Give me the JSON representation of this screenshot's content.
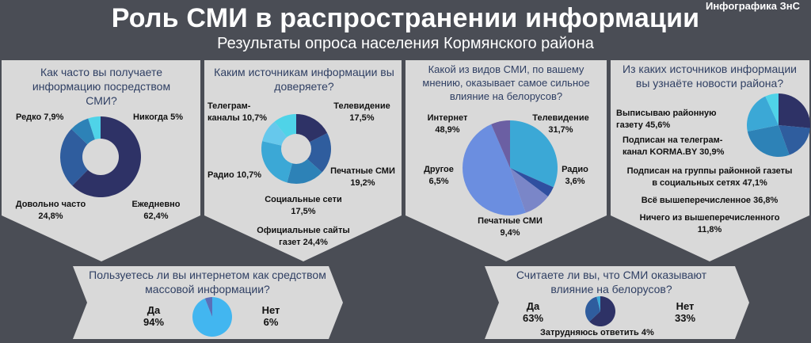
{
  "header": {
    "title": "Роль СМИ в распространении информации",
    "subtitle": "Результаты опроса населения Кормянского района",
    "brand": "Инфографика ЗнС"
  },
  "colors": {
    "navy": "#2e3266",
    "blue": "#2f5d9e",
    "steel": "#2d82b7",
    "sky": "#3ba8d6",
    "cyan": "#4fd3e8",
    "light": "#66c8ec",
    "purple": "#6b5fa3",
    "darkpurple": "#3d1f3a",
    "pale": "#d9d9d9"
  },
  "chart_data": [
    {
      "type": "pie",
      "title": "Как часто вы получаете информацию посредством СМИ?",
      "categories": [
        "Ежедневно",
        "Довольно часто",
        "Редко",
        "Никогда"
      ],
      "labels": [
        "Ежедневно 62,4%",
        "Довольно часто 24,8%",
        "Редко 7,9%",
        "Никогда 5%"
      ],
      "values": [
        62.4,
        24.8,
        7.9,
        5.0
      ]
    },
    {
      "type": "pie",
      "title": "Каким источникам информации вы доверяете?",
      "categories": [
        "Телевидение",
        "Печатные СМИ",
        "Социальные сети",
        "Официальные сайты газет",
        "Радио",
        "Телеграм-каналы"
      ],
      "labels": [
        "Телевидение 17,5%",
        "Печатные СМИ 19,2%",
        "Социальные сети 17,5%",
        "Официальные сайты газет 24,4%",
        "Радио 10,7%",
        "Телеграм-каналы 10,7%"
      ],
      "values": [
        17.5,
        19.2,
        17.5,
        24.4,
        10.7,
        10.7
      ]
    },
    {
      "type": "pie",
      "title": "Какой из видов СМИ, по вашему мнению, оказывает самое сильное влияние на белорусов?",
      "categories": [
        "Телевидение",
        "Радио",
        "Печатные СМИ",
        "Интернет",
        "Другое"
      ],
      "labels": [
        "Телевидение 31,7%",
        "Радио 3,6%",
        "Печатные СМИ 9,4%",
        "Интернет 48,9%",
        "Другое 6,5%"
      ],
      "values": [
        31.7,
        3.6,
        9.4,
        48.9,
        6.5
      ]
    },
    {
      "type": "pie",
      "title": "Из каких источников информации вы узнаёте новости района?",
      "categories": [
        "Выписываю районную газету",
        "Подписан на телеграм-канал KORMA.BY",
        "Подписан на группы районной газеты в социальных сетях",
        "Всё вышеперечисленное",
        "Ничего из вышеперечисленного"
      ],
      "labels": [
        "Выписываю районную газету 45,6%",
        "Подписан на телеграм-канал KORMA.BY 30,9%",
        "Подписан на группы районной газеты в социальных сетях 47,1%",
        "Всё вышеперечисленное 36,8%",
        "Ничего из вышеперечисленного 11,8%"
      ],
      "values": [
        45.6,
        30.9,
        47.1,
        36.8,
        11.8
      ]
    },
    {
      "type": "pie",
      "title": "Пользуетесь ли вы интернетом как средством массовой информации?",
      "categories": [
        "Да",
        "Нет"
      ],
      "values": [
        94,
        6
      ]
    },
    {
      "type": "pie",
      "title": "Считаете ли вы, что СМИ оказывают влияние на белорусов?",
      "categories": [
        "Да",
        "Нет",
        "Затрудняюсь ответить"
      ],
      "values": [
        63,
        33,
        4
      ]
    }
  ],
  "panels": {
    "p1": {
      "question": "Как часто вы получаете информацию посредством СМИ?",
      "l1": "Редко 7,9%",
      "l2": "Никогда 5%",
      "l3a": "Довольно часто",
      "l3b": "24,8%",
      "l4a": "Ежедневно",
      "l4b": "62,4%"
    },
    "p2": {
      "question": "Каким источникам информации вы доверяете?",
      "tga": "Телеграм-",
      "tgb": "каналы 10,7%",
      "tva": "Телевидение",
      "tvb": "17,5%",
      "radio": "Радио 10,7%",
      "pra": "Печатные СМИ",
      "prb": "19,2%",
      "soa": "Социальные сети",
      "sob": "17,5%",
      "ofa": "Официальные сайты",
      "ofb": "газет 24,4%"
    },
    "p3": {
      "question": "Какой из видов СМИ, по вашему мнению, оказывает самое сильное влияние на белорусов?",
      "ina": "Интернет",
      "inb": "48,9%",
      "tva": "Телевидение",
      "tvb": "31,7%",
      "dra": "Другое",
      "drb": "6,5%",
      "raa": "Радио",
      "rab": "3,6%",
      "pra": "Печатные СМИ",
      "prb": "9,4%"
    },
    "p4": {
      "question": "Из каких источников информации вы узнаёте новости района?",
      "a1": "Выписываю районную",
      "a2": "газету 45,6%",
      "b1": "Подписан на телеграм-",
      "b2": "канал KORMA.BY 30,9%",
      "c1": "Подписан на группы районной газеты",
      "c2": "в социальных сетях 47,1%",
      "d1": "Всё вышеперечисленное 36,8%",
      "e1": "Ничего из вышеперечисленного",
      "e2": "11,8%"
    },
    "p5": {
      "question": "Пользуетесь ли вы интернетом как средством массовой информации?",
      "yes": "Да",
      "yesv": "94%",
      "no": "Нет",
      "nov": "6%"
    },
    "p6": {
      "question": "Считаете ли вы, что СМИ оказывают влияние на белорусов?",
      "yes": "Да",
      "yesv": "63%",
      "no": "Нет",
      "nov": "33%",
      "unsure": "Затрудняюсь ответить 4%"
    }
  }
}
